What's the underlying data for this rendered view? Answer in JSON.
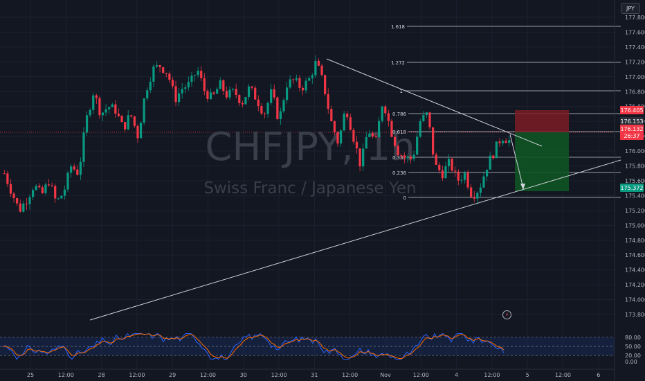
{
  "currency_button": "JPY",
  "watermark": {
    "symbol": "CHFJPY, 1h",
    "name": "Swiss Franc / Japanese Yen"
  },
  "price_axis_labels": [
    "177.800",
    "177.600",
    "177.400",
    "177.200",
    "177.000",
    "176.800",
    "176.600",
    "176.400",
    "176.200",
    "176.000",
    "175.800",
    "175.600",
    "175.400",
    "175.200",
    "175.000",
    "174.800",
    "174.600",
    "174.400",
    "174.200",
    "174.000",
    "173.800"
  ],
  "time_axis_labels": [
    "25",
    "12:00",
    "28",
    "12:00",
    "29",
    "12:00",
    "30",
    "12:00",
    "31",
    "12:00",
    "Nov",
    "12:00",
    "4",
    "12:00",
    "5",
    "12:00",
    "6"
  ],
  "fibonacci_levels": [
    "1.618",
    "1.272",
    "1",
    "0.786",
    "0.618",
    "0.382",
    "0.236",
    "0"
  ],
  "price_tags": {
    "stop": {
      "value": "176.405",
      "color": "#f23645"
    },
    "current_price": {
      "value": "176.153",
      "color": "#2a2e39"
    },
    "last": {
      "value": "176.132",
      "color": "#f23645"
    },
    "countdown": {
      "value": "26:37",
      "color": "#f23645"
    },
    "target": {
      "value": "175.372",
      "color": "#089981"
    }
  },
  "oscillator": {
    "axis_labels": [
      "80.00",
      "50.00",
      "20.00",
      "0.00"
    ],
    "band": [
      20,
      80
    ],
    "colors": {
      "k": "#2962ff",
      "d": "#ff6d00"
    }
  },
  "colors": {
    "up": "#089981",
    "down": "#f23645",
    "background": "#131722",
    "line": "#d1d4dc"
  },
  "chart_data": {
    "type": "candlestick",
    "symbol": "CHFJPY",
    "interval": "1h",
    "ylim": [
      173.7,
      177.85
    ],
    "close_path": [
      175.7,
      175.45,
      175.2,
      175.35,
      175.55,
      175.4,
      175.6,
      175.3,
      175.45,
      175.8,
      175.7,
      176.4,
      176.8,
      176.5,
      176.6,
      176.55,
      176.3,
      176.5,
      176.2,
      176.8,
      177.1,
      177.15,
      177.05,
      176.7,
      176.85,
      176.9,
      177.1,
      176.8,
      176.7,
      176.9,
      176.75,
      176.8,
      176.65,
      176.85,
      176.7,
      176.5,
      176.8,
      176.4,
      176.9,
      176.95,
      176.85,
      176.95,
      177.2,
      176.9,
      176.4,
      176.1,
      176.6,
      176.2,
      175.8,
      176.3,
      176.1,
      176.7,
      176.3,
      176.0,
      175.9,
      175.9,
      176.4,
      176.5,
      175.8,
      175.7,
      175.85,
      175.6,
      175.7,
      175.4,
      175.5,
      175.8,
      176.0,
      176.2,
      176.14
    ]
  }
}
